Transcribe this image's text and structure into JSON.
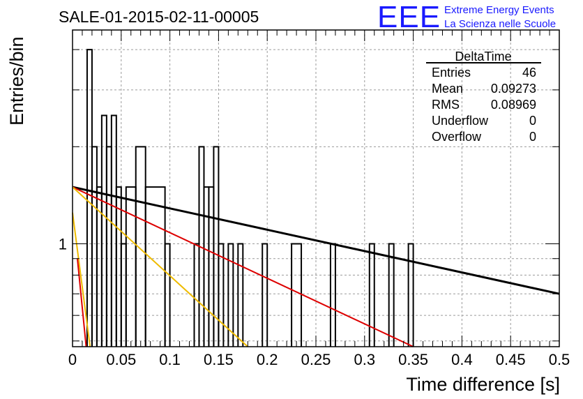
{
  "chart_data": {
    "type": "histogram",
    "title": "SALE-01-2015-02-11-00005",
    "xlabel": "Time difference [s]",
    "ylabel": "Entries/bin",
    "xlim": [
      0,
      0.5
    ],
    "ylim": [
      0.48,
      4.6
    ],
    "yscale": "log",
    "x_ticks": [
      "0",
      "0.05",
      "0.1",
      "0.15",
      "0.2",
      "0.25",
      "0.3",
      "0.35",
      "0.4",
      "0.45",
      "0.5"
    ],
    "y_ticks": [
      "1"
    ],
    "grid": true,
    "bin_width": 0.005,
    "bins": [
      {
        "x0": 0.015,
        "x1": 0.02,
        "y": 4
      },
      {
        "x0": 0.02,
        "x1": 0.025,
        "y": 2
      },
      {
        "x0": 0.025,
        "x1": 0.03,
        "y": 1.5
      },
      {
        "x0": 0.03,
        "x1": 0.035,
        "y": 2.5
      },
      {
        "x0": 0.035,
        "x1": 0.04,
        "y": 2
      },
      {
        "x0": 0.04,
        "x1": 0.045,
        "y": 2.5
      },
      {
        "x0": 0.045,
        "x1": 0.05,
        "y": 1.5
      },
      {
        "x0": 0.05,
        "x1": 0.055,
        "y": 1
      },
      {
        "x0": 0.055,
        "x1": 0.065,
        "y": 1.5
      },
      {
        "x0": 0.065,
        "x1": 0.075,
        "y": 2
      },
      {
        "x0": 0.075,
        "x1": 0.095,
        "y": 1.5
      },
      {
        "x0": 0.095,
        "x1": 0.1,
        "y": 1
      },
      {
        "x0": 0.125,
        "x1": 0.13,
        "y": 1
      },
      {
        "x0": 0.13,
        "x1": 0.135,
        "y": 2
      },
      {
        "x0": 0.135,
        "x1": 0.14,
        "y": 1.5
      },
      {
        "x0": 0.14,
        "x1": 0.145,
        "y": 1.5
      },
      {
        "x0": 0.145,
        "x1": 0.15,
        "y": 2
      },
      {
        "x0": 0.15,
        "x1": 0.155,
        "y": 1
      },
      {
        "x0": 0.16,
        "x1": 0.165,
        "y": 1
      },
      {
        "x0": 0.17,
        "x1": 0.175,
        "y": 1
      },
      {
        "x0": 0.195,
        "x1": 0.2,
        "y": 1
      },
      {
        "x0": 0.225,
        "x1": 0.235,
        "y": 1
      },
      {
        "x0": 0.265,
        "x1": 0.27,
        "y": 1
      },
      {
        "x0": 0.305,
        "x1": 0.31,
        "y": 1
      },
      {
        "x0": 0.325,
        "x1": 0.33,
        "y": 1
      },
      {
        "x0": 0.345,
        "x1": 0.35,
        "y": 1
      }
    ],
    "fit_lines": [
      {
        "color": "#000000",
        "x0": 0,
        "y0": 1.5,
        "x1": 0.5,
        "y1": 0.7
      },
      {
        "color": "#dd0000",
        "x0": 0,
        "y0": 1.5,
        "x1": 0.35,
        "y1": 0.48
      },
      {
        "color": "#eebb00",
        "x0": 0,
        "y0": 1.5,
        "x1": 0.18,
        "y1": 0.48
      },
      {
        "color": "#eebb00",
        "x0": 0,
        "y0": 1.25,
        "x1": 0.018,
        "y1": 0.48
      },
      {
        "color": "#dd0000",
        "x0": 0.005,
        "y0": 0.9,
        "x1": 0.014,
        "y1": 0.48
      }
    ],
    "stats": {
      "name": "DeltaTime",
      "rows": [
        {
          "label": "Entries",
          "value": "46"
        },
        {
          "label": "Mean",
          "value": "0.09273"
        },
        {
          "label": "RMS",
          "value": "0.08969"
        },
        {
          "label": "Underflow",
          "value": "0"
        },
        {
          "label": "Overflow",
          "value": "0"
        }
      ]
    }
  },
  "logo": {
    "text": "EEE",
    "line1": "Extreme Energy Events",
    "line2": "La Scienza nelle Scuole",
    "color": "#1a1aff"
  }
}
